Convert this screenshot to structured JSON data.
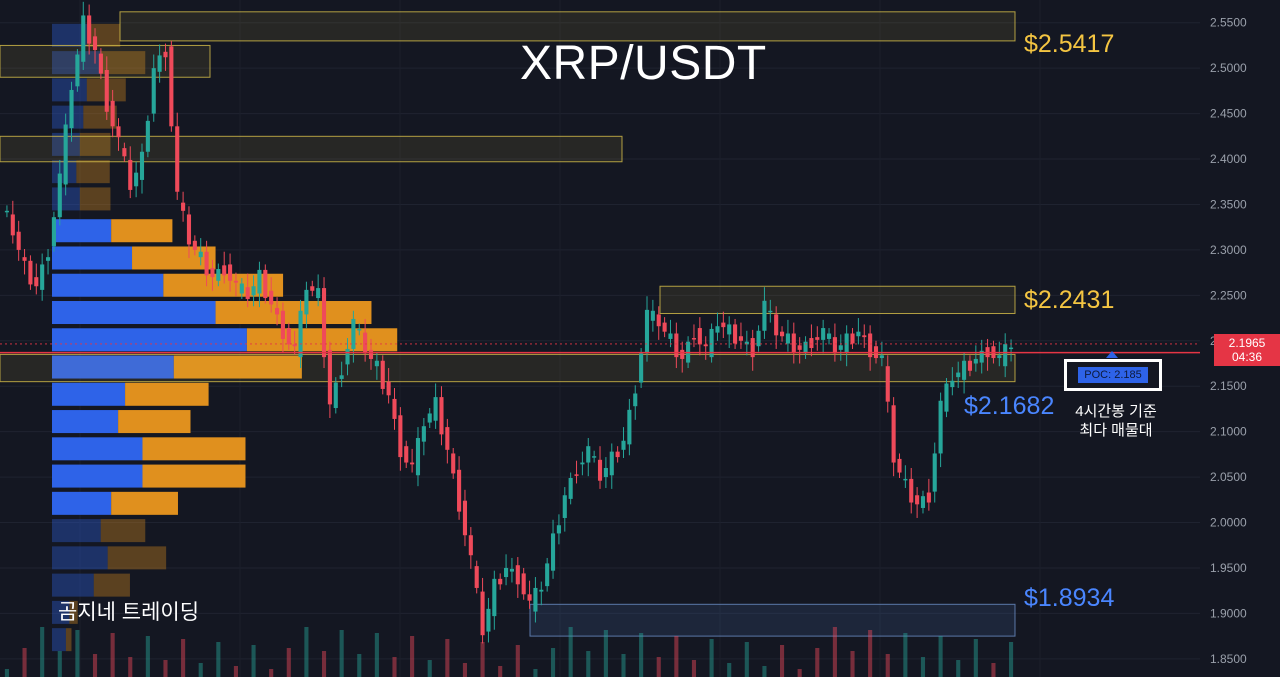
{
  "chart_data": {
    "type": "candlestick",
    "title": "XRP/USDT",
    "timeframe": "4시간봉",
    "y_axis": {
      "min": 1.83,
      "max": 2.575,
      "ticks": [
        "2.5500",
        "2.5000",
        "2.4500",
        "2.4000",
        "2.3500",
        "2.3000",
        "2.2500",
        "2.2000",
        "2.1500",
        "2.1000",
        "2.0500",
        "2.0000",
        "1.9500",
        "1.9000",
        "1.8500"
      ],
      "position": "right"
    },
    "grid": true,
    "current_price": {
      "value": "2.1965",
      "countdown": "04:36",
      "line_value": 2.187
    },
    "price_path": [
      2.35,
      2.32,
      2.28,
      2.26,
      2.3,
      2.38,
      2.48,
      2.55,
      2.52,
      2.46,
      2.42,
      2.37,
      2.4,
      2.5,
      2.52,
      2.36,
      2.31,
      2.29,
      2.27,
      2.28,
      2.26,
      2.25,
      2.27,
      2.24,
      2.21,
      2.19,
      2.26,
      2.25,
      2.13,
      2.17,
      2.22,
      2.19,
      2.17,
      2.14,
      2.08,
      2.06,
      2.11,
      2.13,
      2.08,
      2.02,
      1.96,
      1.88,
      1.93,
      1.95,
      1.94,
      1.91,
      1.93,
      1.98,
      2.03,
      2.06,
      2.08,
      2.05,
      2.07,
      2.09,
      2.15,
      2.23,
      2.22,
      2.2,
      2.18,
      2.21,
      2.19,
      2.22,
      2.21,
      2.2,
      2.19,
      2.24,
      2.21,
      2.2,
      2.19,
      2.2,
      2.21,
      2.19,
      2.2,
      2.21,
      2.19,
      2.18,
      2.07,
      2.04,
      2.02,
      2.03,
      2.13,
      2.16,
      2.17,
      2.18,
      2.19,
      2.18,
      2.1965
    ],
    "volume_profile": {
      "rows": [
        {
          "price": 2.535,
          "buy": 0.1,
          "sell": 0.12,
          "faded": true
        },
        {
          "price": 2.505,
          "buy": 0.14,
          "sell": 0.16,
          "faded": true
        },
        {
          "price": 2.475,
          "buy": 0.1,
          "sell": 0.14,
          "faded": true
        },
        {
          "price": 2.445,
          "buy": 0.09,
          "sell": 0.12,
          "faded": true
        },
        {
          "price": 2.415,
          "buy": 0.08,
          "sell": 0.11,
          "faded": true
        },
        {
          "price": 2.385,
          "buy": 0.07,
          "sell": 0.12,
          "faded": true
        },
        {
          "price": 2.355,
          "buy": 0.08,
          "sell": 0.11,
          "faded": true
        },
        {
          "price": 2.32,
          "buy": 0.17,
          "sell": 0.22
        },
        {
          "price": 2.29,
          "buy": 0.23,
          "sell": 0.3
        },
        {
          "price": 2.26,
          "buy": 0.32,
          "sell": 0.43
        },
        {
          "price": 2.23,
          "buy": 0.47,
          "sell": 0.56
        },
        {
          "price": 2.2,
          "buy": 0.56,
          "sell": 0.54
        },
        {
          "price": 2.17,
          "buy": 0.35,
          "sell": 0.46
        },
        {
          "price": 2.14,
          "buy": 0.21,
          "sell": 0.3
        },
        {
          "price": 2.11,
          "buy": 0.19,
          "sell": 0.26
        },
        {
          "price": 2.08,
          "buy": 0.26,
          "sell": 0.37
        },
        {
          "price": 2.05,
          "buy": 0.26,
          "sell": 0.37
        },
        {
          "price": 2.02,
          "buy": 0.17,
          "sell": 0.24
        },
        {
          "price": 1.99,
          "buy": 0.14,
          "sell": 0.16,
          "faded": true
        },
        {
          "price": 1.96,
          "buy": 0.16,
          "sell": 0.21,
          "faded": true
        },
        {
          "price": 1.93,
          "buy": 0.12,
          "sell": 0.13,
          "faded": true
        },
        {
          "price": 1.9,
          "buy": 0.05,
          "sell": 0.03,
          "faded": true
        },
        {
          "price": 1.87,
          "buy": 0.04,
          "sell": 0.02,
          "faded": true
        }
      ],
      "poc": "2.185"
    },
    "levels": [
      {
        "label": "$2.5417",
        "value": 2.5417,
        "color": "yellow"
      },
      {
        "label": "$2.2431",
        "value": 2.2431,
        "color": "yellow"
      },
      {
        "label": "$2.1682",
        "value": 2.1682,
        "color": "blue"
      },
      {
        "label": "$1.8934",
        "value": 1.8934,
        "color": "blue"
      }
    ],
    "zones": [
      {
        "low": 2.53,
        "high": 2.562,
        "color": "yellow"
      },
      {
        "low": 2.49,
        "high": 2.525,
        "color": "yellow"
      },
      {
        "low": 2.397,
        "high": 2.425,
        "color": "yellow"
      },
      {
        "low": 2.23,
        "high": 2.26,
        "color": "yellow"
      },
      {
        "low": 2.155,
        "high": 2.185,
        "color": "yellow"
      },
      {
        "low": 1.875,
        "high": 1.91,
        "color": "blue"
      }
    ],
    "colors": {
      "up": "#26a69a",
      "down": "#ef4a5a",
      "profile_buy": "#2e63e8",
      "profile_sell": "#e0901e",
      "level_yellow": "#f4c542",
      "level_blue": "#4a86ff",
      "price_line": "#e53545"
    }
  },
  "annotations": {
    "poc_label": "POC: 2.185",
    "note_line1": "4시간봉 기준",
    "note_line2": "최다 매물대"
  },
  "watermark": "곰지네 트레이딩"
}
